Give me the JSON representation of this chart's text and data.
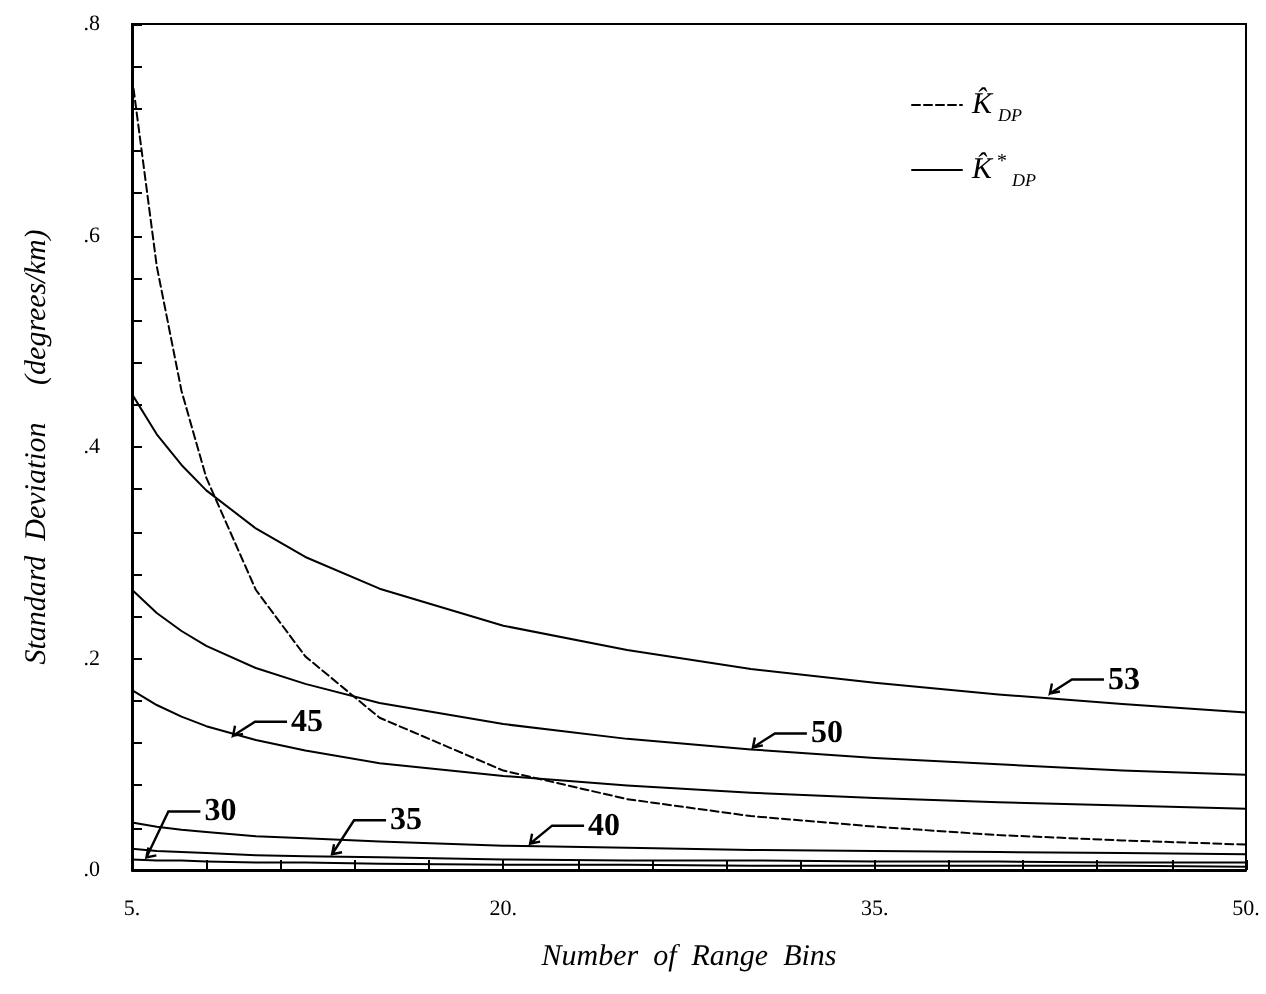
{
  "chart_data": {
    "type": "line",
    "xlabel": "Number  of  Range  Bins",
    "ylabel": "Standard  Deviation     (degrees/km)",
    "x": [
      5,
      6,
      7,
      8,
      10,
      12,
      15,
      20,
      25,
      30,
      35,
      40,
      45,
      50
    ],
    "xlim": [
      5,
      50
    ],
    "xticks": [
      {
        "value": 5,
        "label": "5."
      },
      {
        "value": 8,
        "label": null
      },
      {
        "value": 11,
        "label": null
      },
      {
        "value": 14,
        "label": null
      },
      {
        "value": 17,
        "label": null
      },
      {
        "value": 20,
        "label": "20."
      },
      {
        "value": 23,
        "label": null
      },
      {
        "value": 26,
        "label": null
      },
      {
        "value": 29,
        "label": null
      },
      {
        "value": 32,
        "label": null
      },
      {
        "value": 35,
        "label": "35."
      },
      {
        "value": 38,
        "label": null
      },
      {
        "value": 41,
        "label": null
      },
      {
        "value": 44,
        "label": null
      },
      {
        "value": 47,
        "label": null
      },
      {
        "value": 50,
        "label": "50."
      }
    ],
    "ylim": [
      0,
      0.8
    ],
    "yticks": [
      {
        "value": 0,
        "label": ".0"
      },
      {
        "value": 0.04,
        "label": null
      },
      {
        "value": 0.08,
        "label": null
      },
      {
        "value": 0.12,
        "label": null
      },
      {
        "value": 0.16,
        "label": null
      },
      {
        "value": 0.2,
        "label": ".2"
      },
      {
        "value": 0.24,
        "label": null
      },
      {
        "value": 0.28,
        "label": null
      },
      {
        "value": 0.32,
        "label": null
      },
      {
        "value": 0.36,
        "label": null
      },
      {
        "value": 0.4,
        "label": ".4"
      },
      {
        "value": 0.44,
        "label": null
      },
      {
        "value": 0.48,
        "label": null
      },
      {
        "value": 0.52,
        "label": null
      },
      {
        "value": 0.56,
        "label": null
      },
      {
        "value": 0.6,
        "label": ".6"
      },
      {
        "value": 0.64,
        "label": null
      },
      {
        "value": 0.68,
        "label": null
      },
      {
        "value": 0.72,
        "label": null
      },
      {
        "value": 0.76,
        "label": null
      },
      {
        "value": 0.8,
        "label": ".8"
      }
    ],
    "grid": false,
    "legend": "top right",
    "marker": "none",
    "series": [
      {
        "name": "K̂$_{DP}$",
        "color": "#000000",
        "line_style": "dashed",
        "values": [
          0.75,
          0.571,
          0.453,
          0.371,
          0.265,
          0.202,
          0.144,
          0.094,
          0.067,
          0.051,
          0.041,
          0.033,
          0.028,
          0.024
        ]
      },
      {
        "name": "K̂$^{*}$$_{DP}$",
        "color": "#000000",
        "line_style": "solid",
        "values": [
          0.45,
          0.412,
          0.383,
          0.359,
          0.323,
          0.296,
          0.266,
          0.231,
          0.208,
          0.19,
          0.177,
          0.166,
          0.157,
          0.149
        ]
      },
      {
        "color": "#000000",
        "line_style": "solid",
        "values": [
          0.265,
          0.243,
          0.226,
          0.212,
          0.191,
          0.176,
          0.158,
          0.138,
          0.124,
          0.114,
          0.106,
          0.1,
          0.094,
          0.09
        ]
      },
      {
        "color": "#000000",
        "line_style": "solid",
        "values": [
          0.17,
          0.156,
          0.145,
          0.136,
          0.123,
          0.113,
          0.101,
          0.089,
          0.08,
          0.073,
          0.068,
          0.064,
          0.061,
          0.058
        ]
      },
      {
        "color": "#000000",
        "line_style": "solid",
        "values": [
          0.045,
          0.041,
          0.038,
          0.036,
          0.032,
          0.03,
          0.027,
          0.023,
          0.021,
          0.019,
          0.018,
          0.017,
          0.016,
          0.015
        ]
      },
      {
        "color": "#000000",
        "line_style": "solid",
        "values": [
          0.02,
          0.018,
          0.017,
          0.016,
          0.014,
          0.013,
          0.012,
          0.01,
          0.009,
          0.009,
          0.008,
          0.008,
          0.007,
          0.007
        ]
      },
      {
        "color": "#000000",
        "line_style": "solid",
        "values": [
          0.01,
          0.009,
          0.009,
          0.008,
          0.007,
          0.007,
          0.006,
          0.005,
          0.005,
          0.004,
          0.004,
          0.004,
          0.004,
          0.003
        ]
      }
    ],
    "annotations": [
      {
        "text": "53",
        "x": 42,
        "y": 0.165
      },
      {
        "text": "50",
        "x": 30,
        "y": 0.114
      },
      {
        "text": "45",
        "x": 9,
        "y": 0.125
      },
      {
        "text": "40",
        "x": 21,
        "y": 0.023
      },
      {
        "text": "35",
        "x": 13,
        "y": 0.013
      },
      {
        "text": "30",
        "x": 5.5,
        "y": 0.01
      }
    ]
  }
}
